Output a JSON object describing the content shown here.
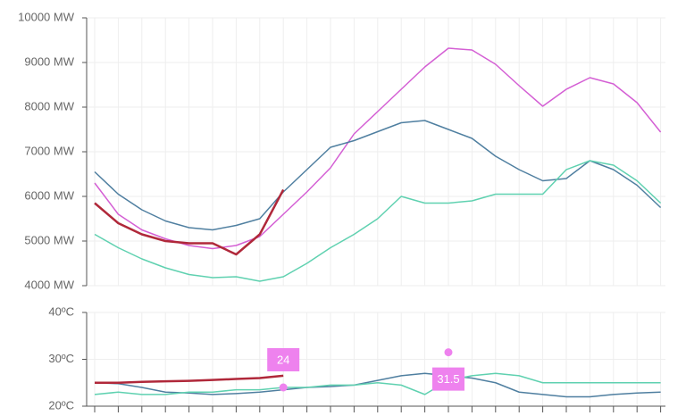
{
  "chart_data": [
    {
      "type": "line",
      "categories": [
        null,
        null,
        null,
        null,
        null,
        null,
        null,
        null,
        null,
        null,
        null,
        null,
        null,
        null,
        null,
        null,
        null,
        null,
        null,
        null,
        null,
        null,
        null,
        null,
        null
      ],
      "ylim": [
        4000,
        10000
      ],
      "yticks": [
        {
          "value": 4000,
          "label": "4000 MW"
        },
        {
          "value": 5000,
          "label": "5000 MW"
        },
        {
          "value": 6000,
          "label": "6000 MW"
        },
        {
          "value": 7000,
          "label": "7000 MW"
        },
        {
          "value": 8000,
          "label": "8000 MW"
        },
        {
          "value": 9000,
          "label": "9000 MW"
        },
        {
          "value": 10000,
          "label": "10000 MW"
        }
      ],
      "grid": true,
      "series": [
        {
          "color": "#d45fd4",
          "values": [
            6300,
            5600,
            5250,
            5050,
            4900,
            4830,
            4900,
            5100,
            5600,
            6100,
            6640,
            7400,
            7900,
            8400,
            8900,
            9320,
            9280,
            8960,
            8480,
            8020,
            8400,
            8660,
            8520,
            8100,
            7440
          ]
        },
        {
          "color": "#4f7fa0",
          "values": [
            6550,
            6050,
            5700,
            5450,
            5300,
            5250,
            5350,
            5500,
            6100,
            6600,
            7100,
            7250,
            7450,
            7650,
            7700,
            7500,
            7300,
            6900,
            6600,
            6350,
            6400,
            6800,
            6600,
            6250,
            5750
          ]
        },
        {
          "color": "#5fd1b0",
          "values": [
            5150,
            4850,
            4600,
            4400,
            4250,
            4180,
            4200,
            4100,
            4200,
            4500,
            4850,
            5150,
            5500,
            6000,
            5850,
            5850,
            5900,
            6050,
            6050,
            6050,
            6600,
            6800,
            6700,
            6350,
            5850
          ]
        },
        {
          "color": "#b0283a",
          "width": 2.5,
          "values": [
            5850,
            5400,
            5150,
            5000,
            4950,
            4950,
            4700,
            5150,
            6150,
            null,
            null,
            null,
            null,
            null,
            null,
            null,
            null,
            null,
            null,
            null,
            null,
            null,
            null,
            null,
            null
          ]
        }
      ]
    },
    {
      "type": "line",
      "categories": [
        null,
        null,
        null,
        null,
        null,
        null,
        null,
        null,
        null,
        null,
        null,
        null,
        null,
        null,
        null,
        null,
        null,
        null,
        null,
        null,
        null,
        null,
        null,
        null,
        null
      ],
      "ylim": [
        20,
        40
      ],
      "yticks": [
        {
          "value": 20,
          "label": "20ºC"
        },
        {
          "value": 30,
          "label": "30ºC"
        },
        {
          "value": 40,
          "label": "40ºC"
        }
      ],
      "grid": true,
      "series": [
        {
          "color": "#4f7fa0",
          "values": [
            25,
            24.8,
            24,
            23,
            22.8,
            22.5,
            22.7,
            23,
            23.5,
            24,
            24.2,
            24.5,
            25.5,
            26.5,
            27,
            26.5,
            26,
            25,
            23,
            22.5,
            22,
            22,
            22.5,
            22.8,
            23
          ]
        },
        {
          "color": "#5fd1b0",
          "values": [
            22.5,
            23,
            22.5,
            22.5,
            23,
            23,
            23.5,
            23.5,
            24,
            24,
            24.5,
            24.5,
            25,
            24.5,
            22.5,
            25.5,
            26.5,
            27,
            26.5,
            25,
            25,
            25,
            25,
            25,
            25
          ]
        },
        {
          "color": "#b0283a",
          "width": 2.5,
          "values": [
            25,
            25,
            25.2,
            25.3,
            25.4,
            25.6,
            25.8,
            26,
            26.5,
            null,
            null,
            null,
            null,
            null,
            null,
            null,
            null,
            null,
            null,
            null,
            null,
            null,
            null,
            null,
            null
          ]
        }
      ],
      "annotations": [
        {
          "x": 8,
          "value": 24
        },
        {
          "x": 15,
          "value": 31.5
        }
      ]
    }
  ]
}
